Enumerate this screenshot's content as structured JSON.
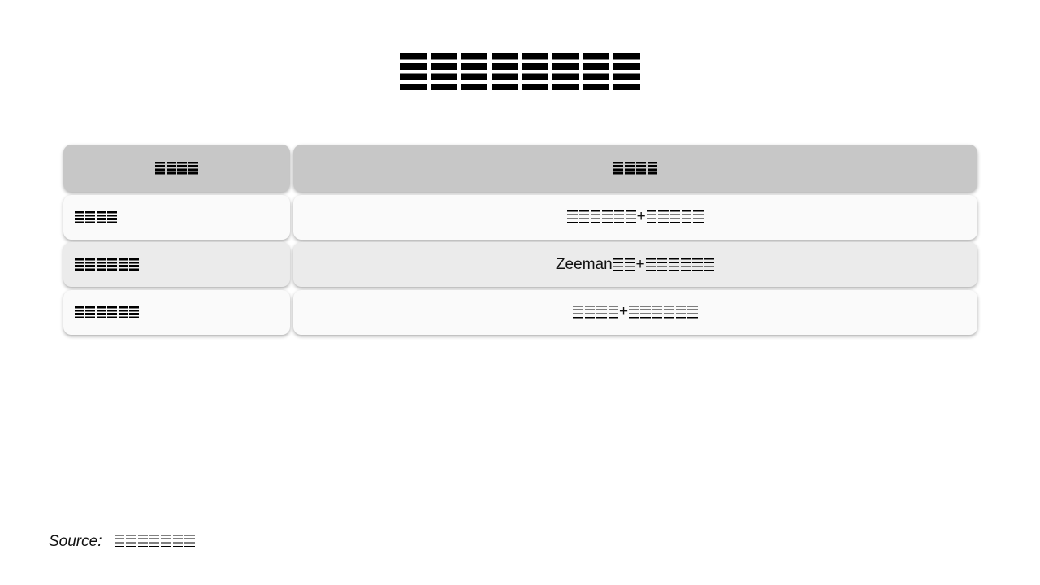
{
  "title": "☰☰☰☰☰☰☰☰",
  "table": {
    "headers": [
      "☰☰☰☰",
      "☰☰☰☰"
    ],
    "rows": [
      {
        "label": "☰☰☰☰",
        "value": "☰☰☰☰☰☰ + ☰☰☰☰☰"
      },
      {
        "label": "☰☰☰☰☰☰",
        "value": "Zeeman ☰☰ + ☰☰☰☰☰☰"
      },
      {
        "label": "☰☰☰☰☰☰",
        "value": "☰☰☰☰ + ☰☰☰☰☰☰"
      }
    ]
  },
  "source": {
    "label": "Source:",
    "text": "☰☰☰☰☰☰☰"
  },
  "colors": {
    "header_bg": "#c7c7c7",
    "row_bg": "#fafafa",
    "row_alt_bg": "#ebebeb"
  }
}
